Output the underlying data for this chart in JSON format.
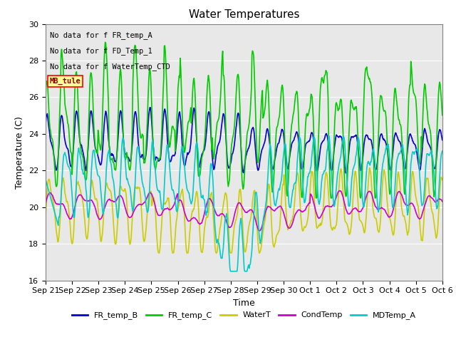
{
  "title": "Water Temperatures",
  "ylabel": "Temperature (C)",
  "xlabel": "Time",
  "ylim": [
    16,
    30
  ],
  "yticks": [
    16,
    18,
    20,
    22,
    24,
    26,
    28,
    30
  ],
  "colors": {
    "FR_temp_B": "#0000CC",
    "FR_temp_C": "#00CC00",
    "WaterT": "#CCCC00",
    "CondTemp": "#CC00CC",
    "MDTemp_A": "#00CCCC"
  },
  "annotations": [
    "No data for f FR_temp_A",
    "No data for f FD_Temp_1",
    "No data for f WaterTemp_CTD"
  ],
  "mb_tule_label": "MB_tule",
  "x_tick_labels": [
    "Sep 21",
    "Sep 22",
    "Sep 23",
    "Sep 24",
    "Sep 25",
    "Sep 26",
    "Sep 27",
    "Sep 28",
    "Sep 29",
    "Sep 30",
    "Oct 1",
    "Oct 2",
    "Oct 3",
    "Oct 4",
    "Oct 5",
    "Oct 6"
  ],
  "n_points": 720,
  "bg_color": "#E8E8E8",
  "fig_bg": "#FFFFFF",
  "legend_entries": [
    "FR_temp_B",
    "FR_temp_C",
    "WaterT",
    "CondTemp",
    "MDTemp_A"
  ]
}
